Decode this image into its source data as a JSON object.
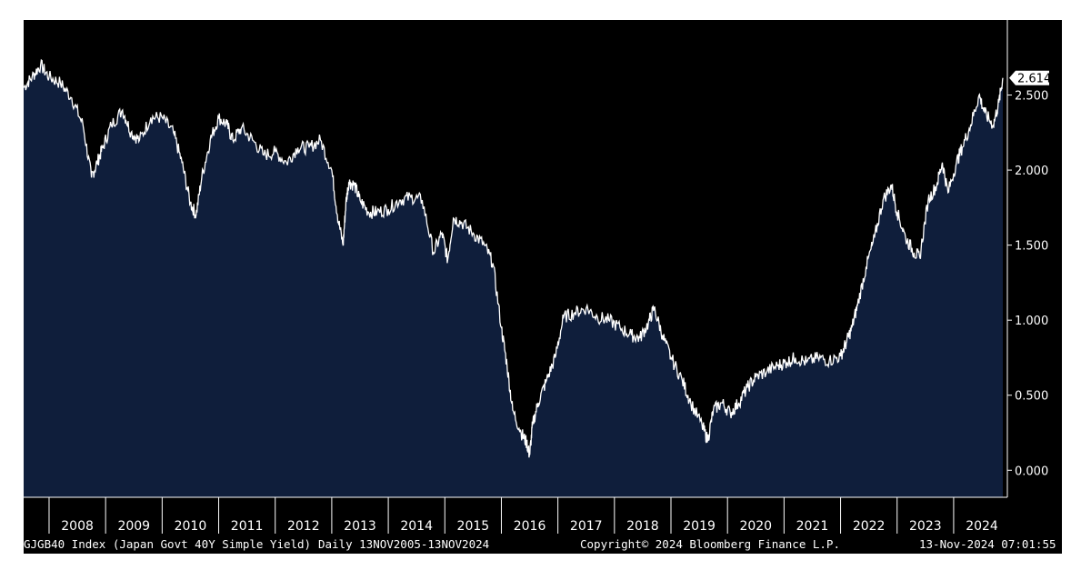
{
  "footer": {
    "security": "GJGB40 Index (Japan Govt 40Y Simple Yield)",
    "range": "Daily 13NOV2005-13NOV2024",
    "copyright": "Copyright© 2024 Bloomberg Finance L.P.",
    "timestamp": "13-Nov-2024 07:01:55"
  },
  "colors": {
    "background": "#000000",
    "area_fill": "#0f1e3b",
    "line": "#ffffff"
  },
  "chart_data": {
    "type": "area",
    "title": "",
    "xlabel": "",
    "ylabel": "",
    "xlim": [
      2007.55,
      2024.95
    ],
    "ylim": [
      -0.18,
      3.0
    ],
    "y_ticks": [
      "0.000",
      "0.500",
      "1.000",
      "1.500",
      "2.000",
      "2.500"
    ],
    "y_tick_values": [
      0,
      0.5,
      1.0,
      1.5,
      2.0,
      2.5
    ],
    "x_tick_labels": [
      "2008",
      "2009",
      "2010",
      "2011",
      "2012",
      "2013",
      "2014",
      "2015",
      "2016",
      "2017",
      "2018",
      "2019",
      "2020",
      "2021",
      "2022",
      "2023",
      "2024"
    ],
    "last_value_label": "2.614",
    "last_value": 2.614,
    "grid": false,
    "series": [
      {
        "x": [
          2007.55,
          2007.7,
          2007.85,
          2008.0,
          2008.2,
          2008.4,
          2008.6,
          2008.75,
          2008.85,
          2008.95,
          2009.1,
          2009.3,
          2009.45,
          2009.6,
          2009.8,
          2010.0,
          2010.2,
          2010.35,
          2010.5,
          2010.6,
          2010.7,
          2010.85,
          2011.0,
          2011.15,
          2011.25,
          2011.4,
          2011.6,
          2011.8,
          2012.0,
          2012.2,
          2012.4,
          2012.6,
          2012.8,
          2013.0,
          2013.1,
          2013.2,
          2013.25,
          2013.3,
          2013.4,
          2013.5,
          2013.65,
          2013.8,
          2014.0,
          2014.2,
          2014.4,
          2014.6,
          2014.8,
          2014.95,
          2015.05,
          2015.15,
          2015.3,
          2015.5,
          2015.7,
          2015.85,
          2016.0,
          2016.1,
          2016.2,
          2016.35,
          2016.45,
          2016.5,
          2016.55,
          2016.65,
          2016.8,
          2016.95,
          2017.1,
          2017.3,
          2017.5,
          2017.7,
          2017.9,
          2018.1,
          2018.3,
          2018.45,
          2018.6,
          2018.7,
          2018.85,
          2019.0,
          2019.2,
          2019.35,
          2019.55,
          2019.65,
          2019.75,
          2019.9,
          2020.05,
          2020.2,
          2020.35,
          2020.5,
          2020.7,
          2020.9,
          2021.05,
          2021.2,
          2021.4,
          2021.6,
          2021.8,
          2022.0,
          2022.1,
          2022.2,
          2022.3,
          2022.45,
          2022.6,
          2022.75,
          2022.9,
          2023.0,
          2023.15,
          2023.3,
          2023.4,
          2023.55,
          2023.7,
          2023.8,
          2023.9,
          2024.05,
          2024.15,
          2024.3,
          2024.45,
          2024.55,
          2024.7,
          2024.8,
          2024.87
        ],
        "y": [
          2.55,
          2.62,
          2.7,
          2.62,
          2.58,
          2.48,
          2.3,
          1.95,
          2.05,
          2.15,
          2.3,
          2.4,
          2.25,
          2.2,
          2.35,
          2.35,
          2.25,
          2.05,
          1.78,
          1.7,
          1.95,
          2.2,
          2.35,
          2.3,
          2.2,
          2.28,
          2.2,
          2.1,
          2.12,
          2.05,
          2.15,
          2.15,
          2.2,
          2.0,
          1.7,
          1.5,
          1.78,
          1.92,
          1.9,
          1.8,
          1.72,
          1.72,
          1.74,
          1.8,
          1.82,
          1.8,
          1.45,
          1.58,
          1.4,
          1.68,
          1.65,
          1.58,
          1.5,
          1.38,
          0.95,
          0.7,
          0.4,
          0.25,
          0.18,
          0.1,
          0.3,
          0.45,
          0.6,
          0.75,
          1.02,
          1.05,
          1.08,
          1.02,
          1.0,
          0.95,
          0.9,
          0.88,
          0.98,
          1.08,
          0.9,
          0.75,
          0.6,
          0.45,
          0.3,
          0.2,
          0.4,
          0.45,
          0.38,
          0.45,
          0.55,
          0.62,
          0.66,
          0.7,
          0.72,
          0.75,
          0.72,
          0.75,
          0.73,
          0.76,
          0.85,
          0.95,
          1.1,
          1.35,
          1.55,
          1.8,
          1.9,
          1.72,
          1.55,
          1.45,
          1.42,
          1.8,
          1.9,
          2.05,
          1.85,
          2.05,
          2.15,
          2.3,
          2.5,
          2.38,
          2.3,
          2.45,
          2.614
        ]
      }
    ]
  }
}
